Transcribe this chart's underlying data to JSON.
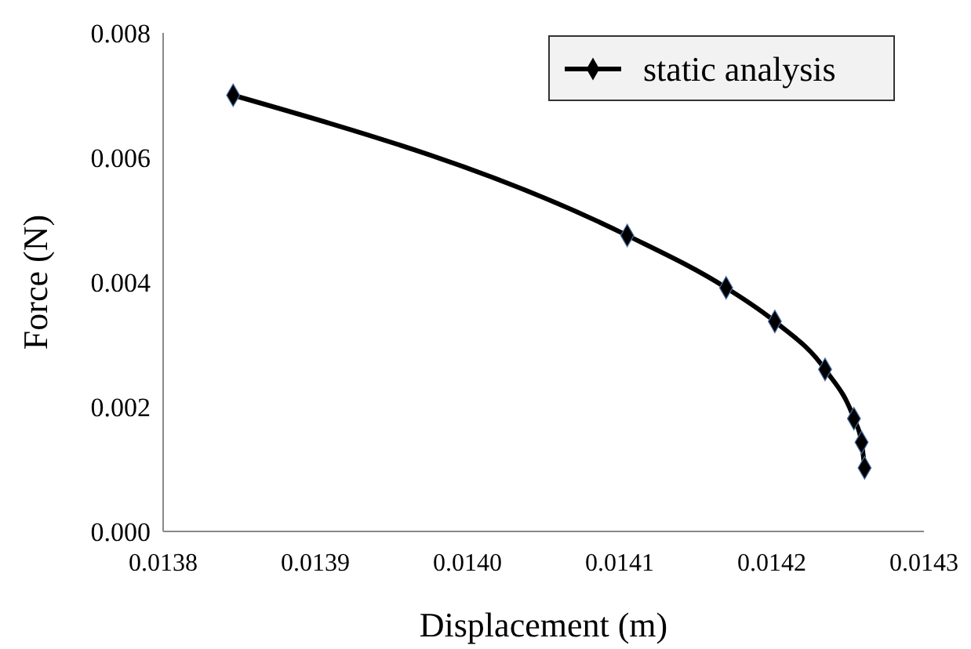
{
  "chart_data": {
    "type": "line",
    "xlabel": "Displacement (m)",
    "ylabel": "Force (N)",
    "xlim": [
      0.0138,
      0.0143
    ],
    "xticks": [
      {
        "value": 0.0138,
        "label": "0.0138"
      },
      {
        "value": 0.0139,
        "label": "0.0139"
      },
      {
        "value": 0.014,
        "label": "0.0140"
      },
      {
        "value": 0.0141,
        "label": "0.0141"
      },
      {
        "value": 0.0142,
        "label": "0.0142"
      },
      {
        "value": 0.0143,
        "label": "0.0143"
      }
    ],
    "ylim": [
      0,
      0.008
    ],
    "yticks": [
      {
        "value": 0,
        "label": "0.000"
      },
      {
        "value": 0.002,
        "label": "0.002"
      },
      {
        "value": 0.004,
        "label": "0.004"
      },
      {
        "value": 0.006,
        "label": "0.006"
      },
      {
        "value": 0.008,
        "label": "0.008"
      }
    ],
    "series": [
      {
        "name": "static analysis",
        "color": "#000000",
        "x": [
          0.013846,
          0.014105,
          0.01417,
          0.014202,
          0.014235,
          0.014254,
          0.014259,
          0.014261
        ],
        "values": [
          0.007,
          0.00475,
          0.00391,
          0.00337,
          0.0026,
          0.00181,
          0.00143,
          0.00102
        ]
      }
    ],
    "marker": "diamond",
    "legend": "top right",
    "grid": false
  }
}
